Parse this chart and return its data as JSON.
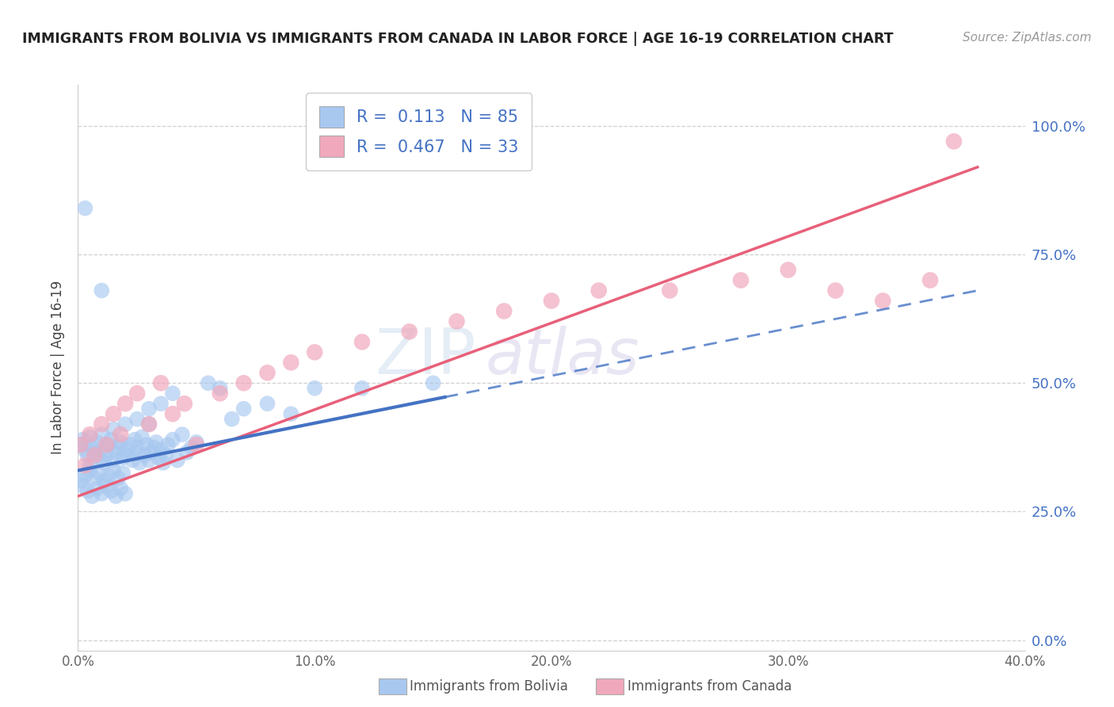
{
  "title": "IMMIGRANTS FROM BOLIVIA VS IMMIGRANTS FROM CANADA IN LABOR FORCE | AGE 16-19 CORRELATION CHART",
  "source": "Source: ZipAtlas.com",
  "ylabel": "In Labor Force | Age 16-19",
  "xlim": [
    0.0,
    0.4
  ],
  "ylim": [
    -0.02,
    1.08
  ],
  "xtick_vals": [
    0.0,
    0.1,
    0.2,
    0.3,
    0.4
  ],
  "xtick_labels": [
    "0.0%",
    "10.0%",
    "20.0%",
    "30.0%",
    "40.0%"
  ],
  "ytick_vals": [
    0.0,
    0.25,
    0.5,
    0.75,
    1.0
  ],
  "ytick_labels": [
    "0.0%",
    "25.0%",
    "50.0%",
    "75.0%",
    "100.0%"
  ],
  "bolivia_color": "#a8c8f0",
  "canada_color": "#f0a8bc",
  "bolivia_line_color": "#4472c4",
  "canada_line_color": "#e8607a",
  "bolivia_R": 0.113,
  "bolivia_N": 85,
  "canada_R": 0.467,
  "canada_N": 33,
  "legend_label_bolivia": "Immigrants from Bolivia",
  "legend_label_canada": "Immigrants from Canada",
  "background_color": "#ffffff",
  "watermark_zip": "ZIP",
  "watermark_atlas": "atlas",
  "bolivia_x": [
    0.001,
    0.002,
    0.003,
    0.004,
    0.005,
    0.005,
    0.006,
    0.007,
    0.008,
    0.009,
    0.01,
    0.01,
    0.011,
    0.012,
    0.013,
    0.014,
    0.015,
    0.015,
    0.016,
    0.017,
    0.018,
    0.019,
    0.02,
    0.02,
    0.021,
    0.022,
    0.023,
    0.024,
    0.025,
    0.025,
    0.026,
    0.027,
    0.028,
    0.029,
    0.03,
    0.03,
    0.031,
    0.032,
    0.033,
    0.034,
    0.035,
    0.036,
    0.037,
    0.038,
    0.04,
    0.042,
    0.044,
    0.046,
    0.048,
    0.05,
    0.001,
    0.002,
    0.003,
    0.004,
    0.005,
    0.006,
    0.007,
    0.008,
    0.009,
    0.01,
    0.011,
    0.012,
    0.013,
    0.014,
    0.015,
    0.016,
    0.017,
    0.018,
    0.019,
    0.02,
    0.025,
    0.03,
    0.035,
    0.04,
    0.055,
    0.06,
    0.065,
    0.07,
    0.08,
    0.09,
    0.1,
    0.12,
    0.15,
    0.003,
    0.01
  ],
  "bolivia_y": [
    0.38,
    0.39,
    0.37,
    0.36,
    0.395,
    0.34,
    0.375,
    0.365,
    0.385,
    0.355,
    0.37,
    0.4,
    0.345,
    0.36,
    0.38,
    0.39,
    0.35,
    0.41,
    0.365,
    0.375,
    0.385,
    0.355,
    0.37,
    0.42,
    0.36,
    0.38,
    0.35,
    0.39,
    0.365,
    0.375,
    0.345,
    0.395,
    0.36,
    0.38,
    0.35,
    0.42,
    0.365,
    0.375,
    0.385,
    0.355,
    0.37,
    0.345,
    0.36,
    0.38,
    0.39,
    0.35,
    0.4,
    0.365,
    0.375,
    0.385,
    0.31,
    0.3,
    0.32,
    0.29,
    0.33,
    0.28,
    0.315,
    0.295,
    0.325,
    0.285,
    0.31,
    0.3,
    0.32,
    0.29,
    0.33,
    0.28,
    0.315,
    0.295,
    0.325,
    0.285,
    0.43,
    0.45,
    0.46,
    0.48,
    0.5,
    0.49,
    0.43,
    0.45,
    0.46,
    0.44,
    0.49,
    0.49,
    0.5,
    0.84,
    0.68
  ],
  "canada_x": [
    0.001,
    0.003,
    0.005,
    0.007,
    0.01,
    0.012,
    0.015,
    0.018,
    0.02,
    0.025,
    0.03,
    0.035,
    0.04,
    0.045,
    0.05,
    0.06,
    0.07,
    0.08,
    0.09,
    0.1,
    0.12,
    0.14,
    0.16,
    0.18,
    0.2,
    0.22,
    0.25,
    0.28,
    0.3,
    0.32,
    0.34,
    0.36,
    0.37
  ],
  "canada_y": [
    0.38,
    0.34,
    0.4,
    0.36,
    0.42,
    0.38,
    0.44,
    0.4,
    0.46,
    0.48,
    0.42,
    0.5,
    0.44,
    0.46,
    0.38,
    0.48,
    0.5,
    0.52,
    0.54,
    0.56,
    0.58,
    0.6,
    0.62,
    0.64,
    0.66,
    0.68,
    0.68,
    0.7,
    0.72,
    0.68,
    0.66,
    0.7,
    0.97
  ],
  "bolivia_line_x0": 0.0,
  "bolivia_line_y0": 0.33,
  "bolivia_line_x1": 0.38,
  "bolivia_line_y1": 0.68,
  "canada_line_x0": 0.0,
  "canada_line_y0": 0.28,
  "canada_line_x1": 0.38,
  "canada_line_y1": 0.92
}
